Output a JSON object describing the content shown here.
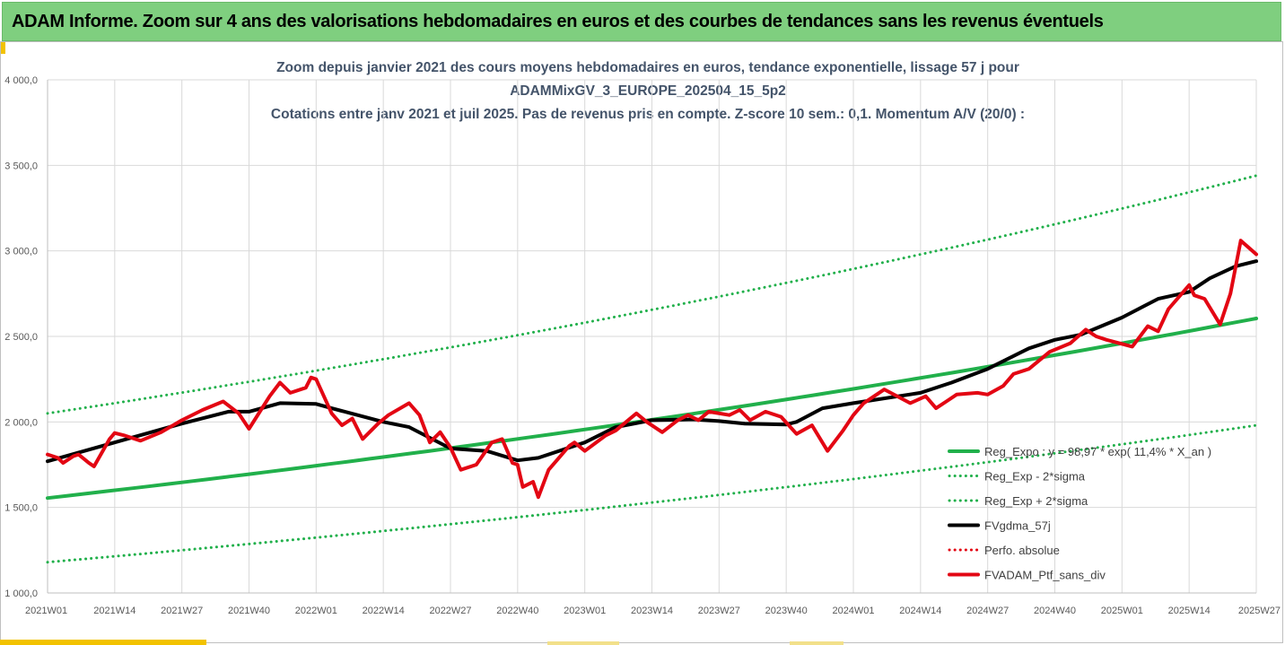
{
  "header": {
    "title": "ADAM Informe. Zoom sur 4 ans des valorisations hebdomadaires en euros et des courbes de tendances sans les revenus éventuels"
  },
  "colors": {
    "header_bg": "#7fcf7f",
    "regression": "#21b04b",
    "sigma": "#21b04b",
    "smoothed": "#000000",
    "perf": "#e30613",
    "portfolio": "#e30613",
    "title_text": "#44546a"
  },
  "chart_data": {
    "type": "line",
    "title": [
      "Zoom depuis janvier 2021 des cours moyens hebdomadaires  en euros, tendance exponentielle, lissage 57 j pour",
      "ADAMMixGV_3_EUROPE_202504_15_5p2",
      "Cotations entre janv 2021 et juil 2025. Pas de revenus pris en compte. Z-score 10 sem.: 0,1. Momentum A/V (20/0) :"
    ],
    "ylim": [
      1000,
      4000
    ],
    "y_ticks": [
      "1 000,0",
      "1 500,0",
      "2 000,0",
      "2 500,0",
      "3 000,0",
      "3 500,0",
      "4 000,0"
    ],
    "y_tick_values": [
      1000,
      1500,
      2000,
      2500,
      3000,
      3500,
      4000
    ],
    "x_ticks": [
      "2021W01",
      "2021W14",
      "2021W27",
      "2021W40",
      "2022W01",
      "2022W14",
      "2022W27",
      "2022W40",
      "2023W01",
      "2023W14",
      "2023W27",
      "2023W40",
      "2024W01",
      "2024W14",
      "2024W27",
      "2024W40",
      "2025W01",
      "2025W14",
      "2025W27"
    ],
    "x_tick_weeks": [
      0,
      13,
      26,
      39,
      52,
      65,
      78,
      91,
      104,
      117,
      130,
      143,
      156,
      169,
      182,
      195,
      208,
      221,
      234
    ],
    "legend": {
      "position": "bottom-right",
      "entries": [
        {
          "label": "Reg_Expo : y = 98,97 * exp( 11,4% *  X_an )",
          "style": "solid",
          "color": "#21b04b",
          "width": 4
        },
        {
          "label": "Reg_Exp - 2*sigma",
          "style": "dotted",
          "color": "#21b04b",
          "width": 3
        },
        {
          "label": "Reg_Exp + 2*sigma",
          "style": "dotted",
          "color": "#21b04b",
          "width": 3
        },
        {
          "label": "FVgdma_57j",
          "style": "solid",
          "color": "#000000",
          "width": 4
        },
        {
          "label": "Perfo. absolue",
          "style": "dotted",
          "color": "#e30613",
          "width": 3
        },
        {
          "label": "FVADAM_Ptf_sans_div",
          "style": "solid",
          "color": "#e30613",
          "width": 4
        }
      ]
    },
    "series": [
      {
        "name": "Reg_Expo : y = 98,97 * exp( 11,4% *  X_an )",
        "x": [
          0,
          234
        ],
        "values": [
          1555,
          2605
        ],
        "curve": "exponential"
      },
      {
        "name": "Reg_Exp - 2*sigma",
        "x": [
          0,
          234
        ],
        "values": [
          1180,
          1980
        ],
        "curve": "exponential"
      },
      {
        "name": "Reg_Exp + 2*sigma",
        "x": [
          0,
          234
        ],
        "values": [
          2050,
          3440
        ],
        "curve": "exponential"
      },
      {
        "name": "FVgdma_57j",
        "x": [
          0,
          13,
          26,
          35,
          39,
          45,
          52,
          55,
          65,
          70,
          78,
          85,
          91,
          95,
          104,
          110,
          117,
          125,
          130,
          135,
          143,
          145,
          150,
          156,
          169,
          175,
          182,
          190,
          195,
          200,
          208,
          215,
          221,
          225,
          230,
          234
        ],
        "values": [
          1770,
          1880,
          1990,
          2060,
          2060,
          2110,
          2105,
          2080,
          2000,
          1970,
          1845,
          1830,
          1775,
          1790,
          1880,
          1970,
          2010,
          2015,
          2005,
          1990,
          1985,
          2000,
          2080,
          2110,
          2170,
          2230,
          2310,
          2430,
          2480,
          2510,
          2610,
          2720,
          2760,
          2840,
          2910,
          2940
        ]
      },
      {
        "name": "FVADAM_Ptf_sans_div",
        "x": [
          0,
          2,
          3,
          5,
          6,
          8,
          9,
          12,
          13,
          15,
          18,
          22,
          26,
          30,
          34,
          37,
          39,
          43,
          45,
          47,
          50,
          51,
          52,
          55,
          57,
          59,
          61,
          64,
          66,
          70,
          72,
          74,
          76,
          78,
          80,
          83,
          86,
          88,
          90,
          91,
          92,
          94,
          95,
          97,
          101,
          102,
          104,
          108,
          110,
          114,
          116,
          119,
          122,
          124,
          126,
          128,
          132,
          134,
          136,
          139,
          142,
          145,
          148,
          151,
          154,
          156,
          158,
          162,
          167,
          170,
          172,
          174,
          176,
          180,
          182,
          185,
          187,
          190,
          194,
          198,
          201,
          203,
          205,
          210,
          213,
          215,
          217,
          221,
          222,
          224,
          227,
          229,
          231,
          234
        ],
        "values": [
          1810,
          1790,
          1760,
          1800,
          1810,
          1760,
          1740,
          1900,
          1935,
          1920,
          1890,
          1940,
          2010,
          2070,
          2120,
          2050,
          1960,
          2150,
          2230,
          2170,
          2200,
          2260,
          2250,
          2050,
          1980,
          2020,
          1900,
          1990,
          2040,
          2110,
          2040,
          1880,
          1940,
          1850,
          1720,
          1750,
          1880,
          1900,
          1760,
          1750,
          1620,
          1650,
          1560,
          1720,
          1860,
          1880,
          1830,
          1920,
          1950,
          2050,
          2000,
          1940,
          2010,
          2040,
          2010,
          2060,
          2040,
          2070,
          2010,
          2060,
          2030,
          1930,
          1980,
          1830,
          1950,
          2040,
          2110,
          2190,
          2110,
          2150,
          2080,
          2120,
          2160,
          2170,
          2160,
          2210,
          2280,
          2310,
          2410,
          2460,
          2540,
          2500,
          2480,
          2440,
          2560,
          2530,
          2660,
          2800,
          2740,
          2720,
          2570,
          2750,
          3060,
          2980
        ]
      }
    ]
  }
}
